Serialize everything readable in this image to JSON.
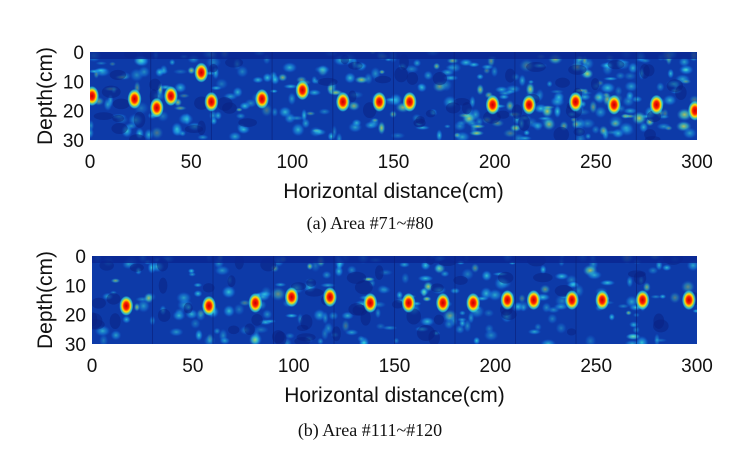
{
  "chart_data": [
    {
      "type": "heatmap",
      "caption": "(a) Area #71~#80",
      "xlabel": "Horizontal distance(cm)",
      "ylabel": "Depth(cm)",
      "xlim": [
        0,
        300
      ],
      "ylim": [
        0,
        30
      ],
      "y_inverted": true,
      "xticks": [
        "0",
        "50",
        "100",
        "150",
        "200",
        "250",
        "300"
      ],
      "yticks": [
        "0",
        "10",
        "20",
        "30"
      ],
      "segment_width_cm": 30,
      "colormap": "jet",
      "hotspots": [
        {
          "x": 1,
          "depth": 15
        },
        {
          "x": 22,
          "depth": 16
        },
        {
          "x": 33,
          "depth": 19
        },
        {
          "x": 40,
          "depth": 15
        },
        {
          "x": 55,
          "depth": 7
        },
        {
          "x": 60,
          "depth": 17
        },
        {
          "x": 85,
          "depth": 16
        },
        {
          "x": 105,
          "depth": 13
        },
        {
          "x": 125,
          "depth": 17
        },
        {
          "x": 143,
          "depth": 17
        },
        {
          "x": 158,
          "depth": 17
        },
        {
          "x": 199,
          "depth": 18
        },
        {
          "x": 217,
          "depth": 18
        },
        {
          "x": 240,
          "depth": 17
        },
        {
          "x": 259,
          "depth": 18
        },
        {
          "x": 280,
          "depth": 18
        },
        {
          "x": 299,
          "depth": 20
        }
      ],
      "noise_level": 0.9
    },
    {
      "type": "heatmap",
      "caption": "(b) Area #111~#120",
      "xlabel": "Horizontal distance(cm)",
      "ylabel": "Depth(cm)",
      "xlim": [
        0,
        300
      ],
      "ylim": [
        0,
        30
      ],
      "y_inverted": true,
      "xticks": [
        "0",
        "50",
        "100",
        "150",
        "200",
        "250",
        "300"
      ],
      "yticks": [
        "0",
        "10",
        "20",
        "30"
      ],
      "segment_width_cm": 30,
      "colormap": "jet",
      "hotspots": [
        {
          "x": 17,
          "depth": 17
        },
        {
          "x": 58,
          "depth": 17
        },
        {
          "x": 81,
          "depth": 16
        },
        {
          "x": 99,
          "depth": 14
        },
        {
          "x": 118,
          "depth": 14
        },
        {
          "x": 138,
          "depth": 16
        },
        {
          "x": 157,
          "depth": 16
        },
        {
          "x": 174,
          "depth": 16
        },
        {
          "x": 189,
          "depth": 16
        },
        {
          "x": 206,
          "depth": 15
        },
        {
          "x": 219,
          "depth": 15
        },
        {
          "x": 238,
          "depth": 15
        },
        {
          "x": 253,
          "depth": 15
        },
        {
          "x": 273,
          "depth": 15
        },
        {
          "x": 296,
          "depth": 15
        }
      ],
      "noise_level": 0.5
    }
  ]
}
